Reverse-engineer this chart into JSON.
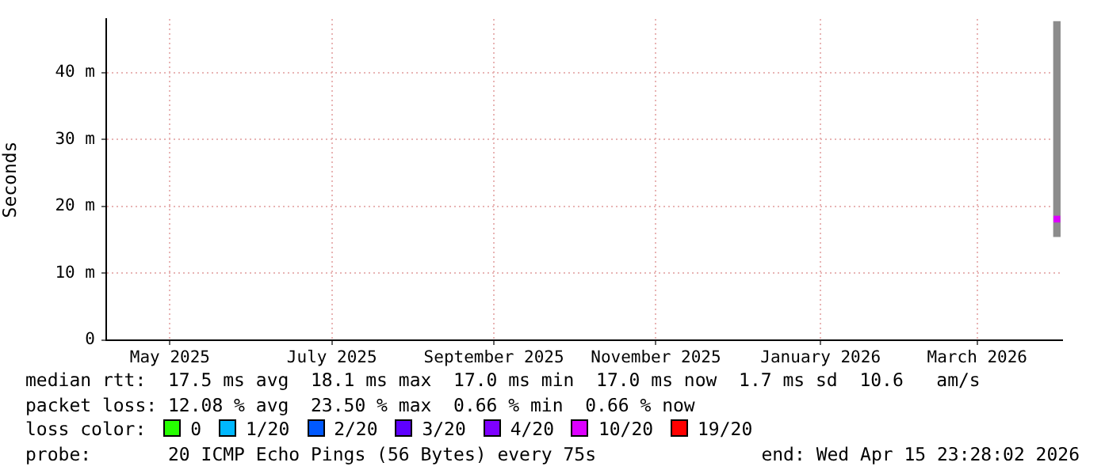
{
  "chart_data": {
    "type": "scatter",
    "ylabel": "Seconds",
    "xlim": [
      "2025-04-22",
      "2026-04-17"
    ],
    "xticks": [
      {
        "value": "2025-05-16",
        "label": "May 2025"
      },
      {
        "value": "2025-07-16",
        "label": "July 2025"
      },
      {
        "value": "2025-09-15",
        "label": "September 2025"
      },
      {
        "value": "2025-11-15",
        "label": "November 2025"
      },
      {
        "value": "2026-01-16",
        "label": "January 2026"
      },
      {
        "value": "2026-03-16",
        "label": "March 2026"
      }
    ],
    "ylim": [
      0,
      48
    ],
    "yticks": [
      0,
      {
        "value": 10,
        "label": "10 m"
      },
      {
        "value": 20,
        "label": "20 m"
      },
      {
        "value": 30,
        "label": "30 m"
      },
      {
        "value": 40,
        "label": "40 m"
      }
    ],
    "grid": true,
    "marker": "square",
    "legend": "bottom",
    "legend_title": "loss color:",
    "series": [
      {
        "type": "bar",
        "color": "#8c8c8c",
        "x": [
          "2026-04-15"
        ],
        "base": [
          15.5
        ],
        "values": [
          32.1
        ]
      },
      {
        "name": "0",
        "color": "#26ff00"
      },
      {
        "name": "1/20",
        "color": "#00b8ff"
      },
      {
        "name": "2/20",
        "color": "#0059ff"
      },
      {
        "name": "3/20",
        "color": "#5e00ff"
      },
      {
        "name": "4/20",
        "color": "#7e00ff"
      },
      {
        "name": "10/20",
        "color": "#dd00ff",
        "x": [
          "2026-04-15"
        ],
        "values": [
          18.1
        ]
      },
      {
        "name": "19/20",
        "color": "#ff0000"
      }
    ],
    "annotations": [
      "median rtt:  17.5 ms avg  18.1 ms max  17.0 ms min  17.0 ms now  1.7 ms sd  10.6   am/s",
      "packet loss: 12.08 % avg  23.50 % max  0.66 % min  0.66 % now",
      "probe:       20 ICMP Echo Pings (56 Bytes) every 75s",
      "end: Wed Apr 15 23:28:02 2026"
    ]
  }
}
